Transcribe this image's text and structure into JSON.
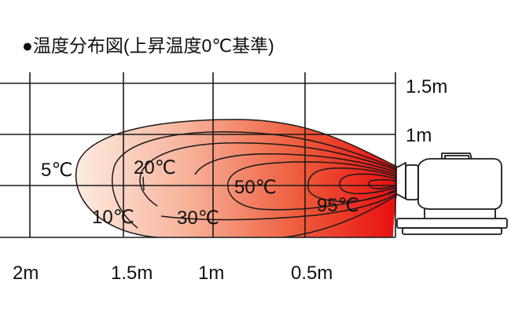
{
  "title": "●温度分布図(上昇温度0℃基準)",
  "x_axis": {
    "ticks": [
      "2m",
      "1.5m",
      "1m",
      "0.5m"
    ]
  },
  "y_axis": {
    "ticks": [
      "1.5m",
      "1m"
    ]
  },
  "contours": [
    {
      "label": "5℃"
    },
    {
      "label": "10℃"
    },
    {
      "label": "20℃"
    },
    {
      "label": "30℃"
    },
    {
      "label": "50℃"
    },
    {
      "label": "95℃"
    }
  ],
  "colors": {
    "hot": "#e80f0f",
    "mid": "#f2664a",
    "cool": "#fde8dc",
    "line": "#1a1a1a"
  },
  "icons": {
    "heater": "heater-icon"
  }
}
